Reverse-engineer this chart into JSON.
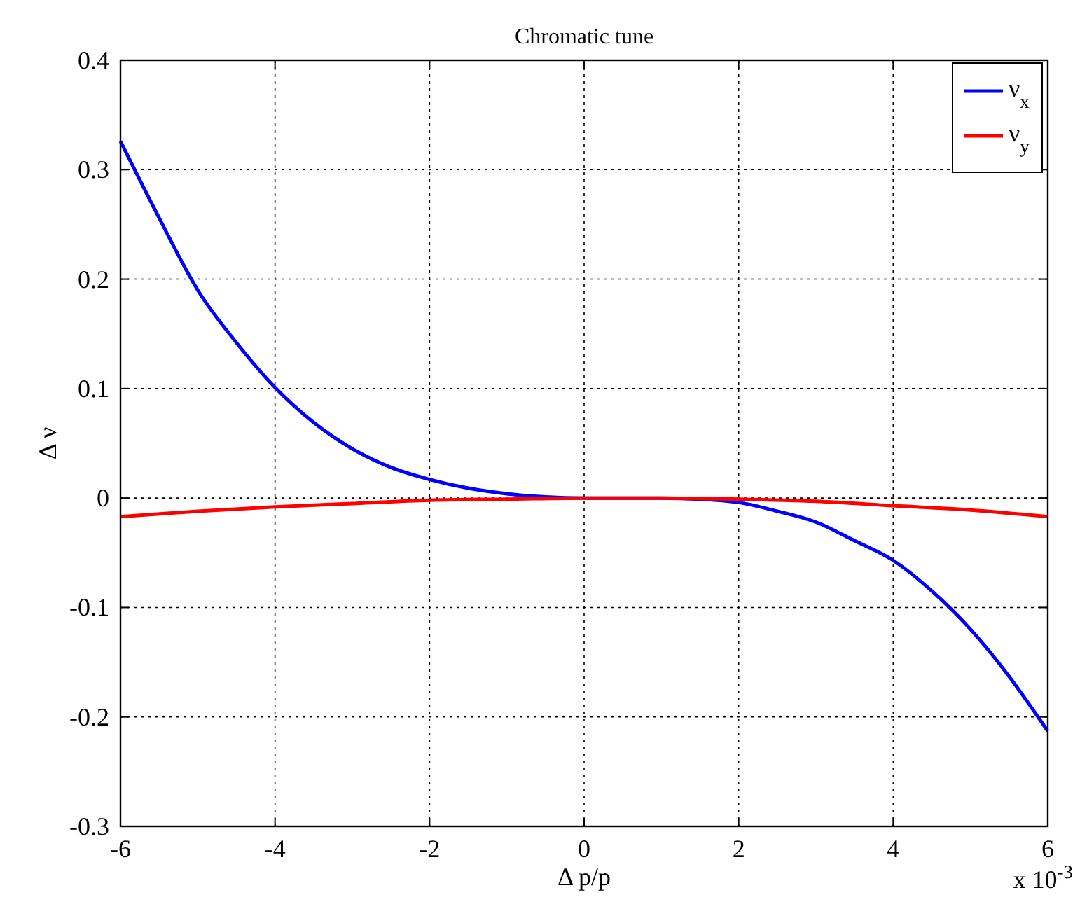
{
  "chart_data": {
    "type": "line",
    "title": "Chromatic tune",
    "xlabel": "Δ p/p",
    "ylabel": "Δ ν",
    "annotations": [
      "x 10$^{-3}$"
    ],
    "xlim": [
      -6,
      6
    ],
    "xticks": [
      -6,
      -4,
      -2,
      0,
      2,
      4,
      6
    ],
    "ylim": [
      -0.3,
      0.4
    ],
    "yticks": [
      -0.3,
      -0.2,
      -0.1,
      0,
      0.1,
      0.2,
      0.3,
      0.4
    ],
    "grid": true,
    "legend": "top right",
    "series": [
      {
        "name": "ν$_{x}$",
        "color": "#0000ff",
        "x": [
          -6,
          -5.5,
          -5,
          -4.5,
          -4,
          -3.5,
          -3,
          -2.5,
          -2,
          -1.5,
          -1,
          -0.5,
          0,
          0.5,
          1,
          1.5,
          2,
          2.5,
          3,
          3.5,
          4,
          4.5,
          5,
          5.5,
          6
        ],
        "values": [
          0.326,
          0.256,
          0.19,
          0.142,
          0.101,
          0.069,
          0.045,
          0.028,
          0.017,
          0.009,
          0.004,
          0.001,
          0,
          0,
          0,
          -0.001,
          -0.004,
          -0.012,
          -0.022,
          -0.039,
          -0.057,
          -0.085,
          -0.12,
          -0.163,
          -0.213
        ]
      },
      {
        "name": "ν$_{y}$",
        "color": "#ff0000",
        "x": [
          -6,
          -5,
          -4,
          -3,
          -2,
          -1,
          0,
          1,
          2,
          3,
          4,
          5,
          6
        ],
        "values": [
          -0.017,
          -0.012,
          -0.008,
          -0.005,
          -0.002,
          -0.001,
          0,
          0,
          -0.001,
          -0.003,
          -0.007,
          -0.011,
          -0.017
        ]
      }
    ]
  }
}
